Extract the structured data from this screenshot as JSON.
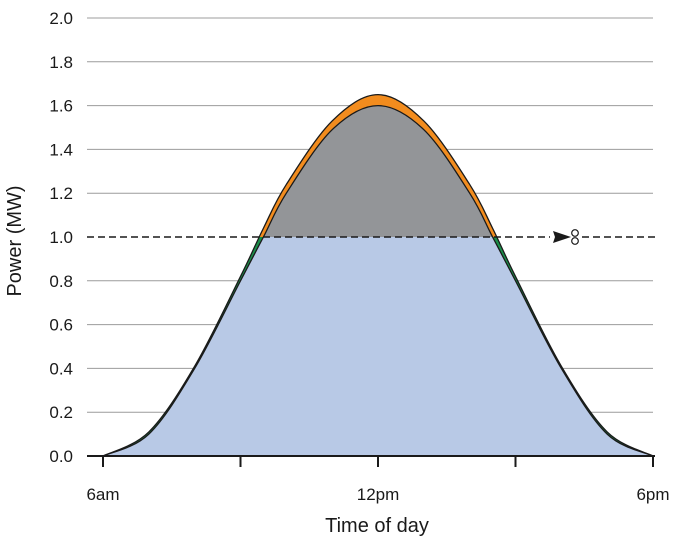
{
  "chart_data": {
    "type": "area",
    "xlabel": "Time of day",
    "ylabel": "Power (MW)",
    "x_tick_labels": [
      "6am",
      "12pm",
      "6pm"
    ],
    "x_ticks_hours": [
      6,
      9,
      12,
      15,
      18
    ],
    "x_tick_label_hours": [
      6,
      12,
      18
    ],
    "xlim_hours": [
      6,
      18
    ],
    "ylim": [
      0,
      2.0
    ],
    "y_ticks": [
      0.0,
      0.2,
      0.4,
      0.6,
      0.8,
      1.0,
      1.2,
      1.4,
      1.6,
      1.8,
      2.0
    ],
    "grid": "horizontal",
    "clip_level_mw": 1.0,
    "clip_marker": "scissors-icon",
    "series": [
      {
        "role": "upper",
        "x": [
          6,
          7,
          8,
          9,
          9.5,
          10,
          11,
          12,
          13,
          14,
          14.5,
          15,
          16,
          17,
          18
        ],
        "y": [
          0.0,
          0.11,
          0.41,
          0.82,
          1.04,
          1.24,
          1.53,
          1.65,
          1.53,
          1.24,
          1.04,
          0.82,
          0.41,
          0.11,
          0.0
        ],
        "fill": "#f28c1e"
      },
      {
        "role": "lower",
        "x": [
          6,
          7,
          8,
          9,
          9.5,
          10,
          11,
          12,
          13,
          14,
          14.5,
          15,
          16,
          17,
          18
        ],
        "y": [
          0.0,
          0.1,
          0.4,
          0.8,
          1.0,
          1.2,
          1.49,
          1.6,
          1.49,
          1.2,
          1.0,
          0.8,
          0.4,
          0.1,
          0.0
        ],
        "fill": "#939598"
      }
    ],
    "colors": {
      "clipped_surplus": "#f28c1e",
      "clipped": "#939598",
      "delivered": "#b8c9e6",
      "ramp_gain": "#1a8f4a"
    }
  }
}
